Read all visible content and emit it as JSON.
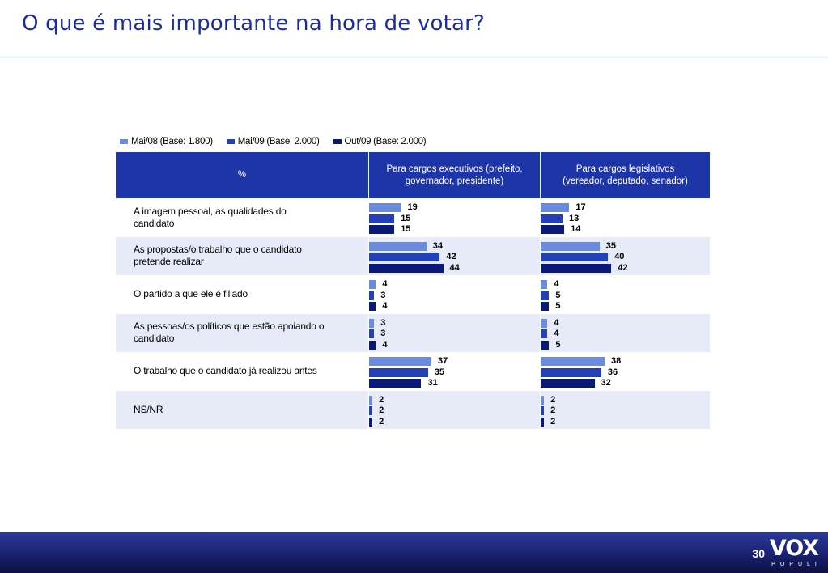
{
  "page": {
    "title": "O que é mais importante na hora de votar?",
    "page_number": "30",
    "logo": {
      "main": "VOX",
      "sub": "POPULI"
    }
  },
  "colors": {
    "title": "#1b2aa6",
    "header_bg": "#1e35a8",
    "row_alt": "#e6ebf7",
    "series": [
      "#6b8be0",
      "#2340b8",
      "#0a1878"
    ]
  },
  "chart_data": {
    "type": "bar",
    "orientation": "horizontal",
    "header_label": "%",
    "groups": [
      "Para cargos executivos (prefeito, governador, presidente)",
      "Para cargos legislativos (vereador, deputado, senador)"
    ],
    "categories": [
      "A imagem pessoal, as qualidades do candidato",
      "As propostas/o trabalho que o candidato pretende realizar",
      "O partido a que ele é filiado",
      "As pessoas/os políticos que estão apoiando o candidato",
      "O trabalho que o candidato já realizou antes",
      "NS/NR"
    ],
    "series": [
      {
        "name": "Mai/08 (Base: 1.800)",
        "color": "#6b8be0",
        "values": {
          "executivos": [
            19,
            34,
            4,
            3,
            37,
            2
          ],
          "legislativos": [
            17,
            35,
            4,
            4,
            38,
            2
          ]
        }
      },
      {
        "name": "Mai/09 (Base: 2.000)",
        "color": "#2340b8",
        "values": {
          "executivos": [
            15,
            42,
            3,
            3,
            35,
            2
          ],
          "legislativos": [
            13,
            40,
            5,
            4,
            36,
            2
          ]
        }
      },
      {
        "name": "Out/09 (Base: 2.000)",
        "color": "#0a1878",
        "values": {
          "executivos": [
            15,
            44,
            4,
            4,
            31,
            2
          ],
          "legislativos": [
            14,
            42,
            5,
            5,
            32,
            2
          ]
        }
      }
    ],
    "legend_position": "top-left",
    "grid": false
  }
}
